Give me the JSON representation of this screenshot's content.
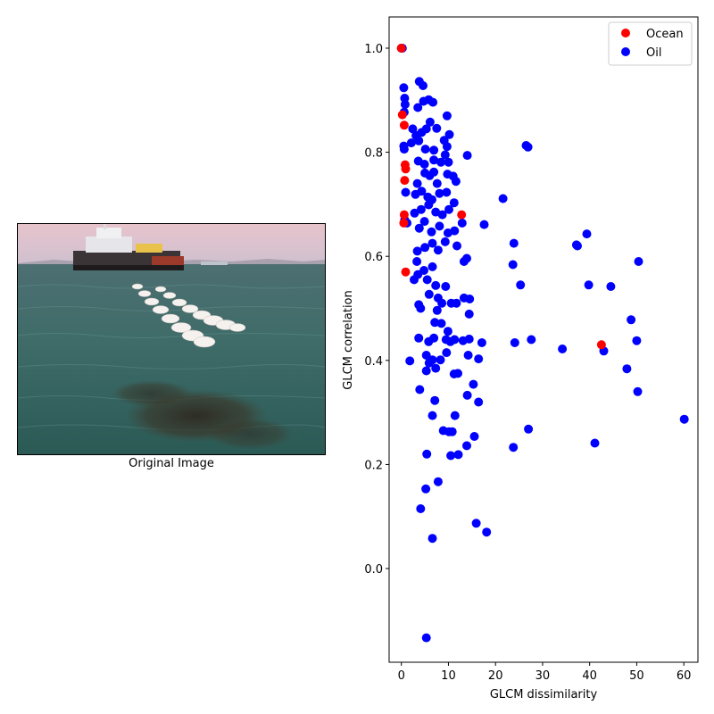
{
  "image_panel": {
    "caption": "Original Image",
    "depicts": "Tugboat towing a white boom of oil-absorbent material across greenish sea water, with dark oil slick in foreground"
  },
  "chart_data": {
    "type": "scatter",
    "xlabel": "GLCM dissimilarity",
    "ylabel": "GLCM correlation",
    "xlim": [
      -2.6,
      63.0
    ],
    "ylim": [
      -0.18,
      1.06
    ],
    "xticks": [
      0,
      10,
      20,
      30,
      40,
      50,
      60
    ],
    "yticks": [
      0.0,
      0.2,
      0.4,
      0.6,
      0.8,
      1.0
    ],
    "xtick_labels": [
      "0",
      "10",
      "20",
      "30",
      "40",
      "50",
      "60"
    ],
    "ytick_labels": [
      "0.0",
      "0.2",
      "0.4",
      "0.6",
      "0.8",
      "1.0"
    ],
    "legend": {
      "position": "upper right",
      "entries": [
        "Ocean",
        "Oil"
      ]
    },
    "series": [
      {
        "name": "Ocean",
        "color": "#ff0000",
        "points": [
          [
            0.0,
            1.0
          ],
          [
            0.2,
            0.872
          ],
          [
            0.6,
            0.852
          ],
          [
            0.8,
            0.776
          ],
          [
            0.9,
            0.768
          ],
          [
            0.7,
            0.746
          ],
          [
            0.6,
            0.68
          ],
          [
            0.5,
            0.664
          ],
          [
            0.9,
            0.57
          ],
          [
            12.8,
            0.68
          ],
          [
            42.5,
            0.43
          ]
        ]
      },
      {
        "name": "Oil",
        "color": "#0000ff",
        "points": [
          [
            0.0,
            1.0
          ],
          [
            0.2,
            1.0
          ],
          [
            0.5,
            0.924
          ],
          [
            0.7,
            0.904
          ],
          [
            0.8,
            0.892
          ],
          [
            0.6,
            0.877
          ],
          [
            0.5,
            0.812
          ],
          [
            0.6,
            0.806
          ],
          [
            0.7,
            0.67
          ],
          [
            0.9,
            0.723
          ],
          [
            1.2,
            0.664
          ],
          [
            3.8,
            0.936
          ],
          [
            4.6,
            0.928
          ],
          [
            3.5,
            0.886
          ],
          [
            4.7,
            0.898
          ],
          [
            5.8,
            0.901
          ],
          [
            6.7,
            0.896
          ],
          [
            9.7,
            0.87
          ],
          [
            2.4,
            0.845
          ],
          [
            3.1,
            0.832
          ],
          [
            4.3,
            0.838
          ],
          [
            5.3,
            0.845
          ],
          [
            6.1,
            0.858
          ],
          [
            7.5,
            0.846
          ],
          [
            9.1,
            0.823
          ],
          [
            10.2,
            0.834
          ],
          [
            2.1,
            0.818
          ],
          [
            3.7,
            0.822
          ],
          [
            5.1,
            0.806
          ],
          [
            6.9,
            0.804
          ],
          [
            9.7,
            0.811
          ],
          [
            3.6,
            0.783
          ],
          [
            4.9,
            0.777
          ],
          [
            6.9,
            0.785
          ],
          [
            8.4,
            0.781
          ],
          [
            9.3,
            0.795
          ],
          [
            10.0,
            0.781
          ],
          [
            14.0,
            0.794
          ],
          [
            26.5,
            0.813
          ],
          [
            26.9,
            0.81
          ],
          [
            3.4,
            0.74
          ],
          [
            5.0,
            0.76
          ],
          [
            6.0,
            0.755
          ],
          [
            6.9,
            0.762
          ],
          [
            7.6,
            0.74
          ],
          [
            9.8,
            0.758
          ],
          [
            11.0,
            0.754
          ],
          [
            11.6,
            0.744
          ],
          [
            3.0,
            0.719
          ],
          [
            4.3,
            0.725
          ],
          [
            5.6,
            0.714
          ],
          [
            6.5,
            0.709
          ],
          [
            8.1,
            0.721
          ],
          [
            9.6,
            0.723
          ],
          [
            11.2,
            0.703
          ],
          [
            21.6,
            0.711
          ],
          [
            2.8,
            0.683
          ],
          [
            4.2,
            0.69
          ],
          [
            5.8,
            0.699
          ],
          [
            7.3,
            0.685
          ],
          [
            8.7,
            0.68
          ],
          [
            10.1,
            0.69
          ],
          [
            12.9,
            0.664
          ],
          [
            17.6,
            0.661
          ],
          [
            3.8,
            0.654
          ],
          [
            4.9,
            0.667
          ],
          [
            6.4,
            0.647
          ],
          [
            8.1,
            0.658
          ],
          [
            9.9,
            0.645
          ],
          [
            11.3,
            0.649
          ],
          [
            3.4,
            0.61
          ],
          [
            5.0,
            0.617
          ],
          [
            6.6,
            0.625
          ],
          [
            7.8,
            0.612
          ],
          [
            9.3,
            0.628
          ],
          [
            11.8,
            0.62
          ],
          [
            3.3,
            0.59
          ],
          [
            4.8,
            0.573
          ],
          [
            6.6,
            0.58
          ],
          [
            13.3,
            0.59
          ],
          [
            13.9,
            0.596
          ],
          [
            23.7,
            0.584
          ],
          [
            23.9,
            0.625
          ],
          [
            37.2,
            0.622
          ],
          [
            37.4,
            0.62
          ],
          [
            39.4,
            0.643
          ],
          [
            50.4,
            0.59
          ],
          [
            2.7,
            0.555
          ],
          [
            3.5,
            0.565
          ],
          [
            5.5,
            0.555
          ],
          [
            7.3,
            0.544
          ],
          [
            9.4,
            0.542
          ],
          [
            25.3,
            0.545
          ],
          [
            39.8,
            0.545
          ],
          [
            44.5,
            0.542
          ],
          [
            3.7,
            0.507
          ],
          [
            4.1,
            0.5
          ],
          [
            5.9,
            0.527
          ],
          [
            7.8,
            0.52
          ],
          [
            8.6,
            0.51
          ],
          [
            10.6,
            0.51
          ],
          [
            11.7,
            0.51
          ],
          [
            13.3,
            0.52
          ],
          [
            14.5,
            0.518
          ],
          [
            14.4,
            0.489
          ],
          [
            7.6,
            0.496
          ],
          [
            7.1,
            0.473
          ],
          [
            8.5,
            0.471
          ],
          [
            9.9,
            0.456
          ],
          [
            10.4,
            0.436
          ],
          [
            3.7,
            0.443
          ],
          [
            5.8,
            0.436
          ],
          [
            6.9,
            0.443
          ],
          [
            9.5,
            0.44
          ],
          [
            11.3,
            0.44
          ],
          [
            13.1,
            0.438
          ],
          [
            14.4,
            0.441
          ],
          [
            17.1,
            0.434
          ],
          [
            24.1,
            0.434
          ],
          [
            27.6,
            0.44
          ],
          [
            34.2,
            0.422
          ],
          [
            43.0,
            0.418
          ],
          [
            48.8,
            0.478
          ],
          [
            50.0,
            0.438
          ],
          [
            1.8,
            0.399
          ],
          [
            5.3,
            0.41
          ],
          [
            5.9,
            0.395
          ],
          [
            6.6,
            0.401
          ],
          [
            8.3,
            0.401
          ],
          [
            9.6,
            0.415
          ],
          [
            14.2,
            0.41
          ],
          [
            16.4,
            0.403
          ],
          [
            5.3,
            0.38
          ],
          [
            7.3,
            0.385
          ],
          [
            11.2,
            0.374
          ],
          [
            12.0,
            0.375
          ],
          [
            15.3,
            0.354
          ],
          [
            47.9,
            0.384
          ],
          [
            3.9,
            0.344
          ],
          [
            14.0,
            0.333
          ],
          [
            7.1,
            0.323
          ],
          [
            16.4,
            0.32
          ],
          [
            50.2,
            0.34
          ],
          [
            6.6,
            0.294
          ],
          [
            11.4,
            0.294
          ],
          [
            60.1,
            0.287
          ],
          [
            8.9,
            0.265
          ],
          [
            10.1,
            0.263
          ],
          [
            10.8,
            0.263
          ],
          [
            27.0,
            0.268
          ],
          [
            15.5,
            0.254
          ],
          [
            13.9,
            0.236
          ],
          [
            23.8,
            0.233
          ],
          [
            41.1,
            0.241
          ],
          [
            5.4,
            0.22
          ],
          [
            10.5,
            0.217
          ],
          [
            12.1,
            0.219
          ],
          [
            7.8,
            0.167
          ],
          [
            5.2,
            0.153
          ],
          [
            4.1,
            0.115
          ],
          [
            15.9,
            0.087
          ],
          [
            18.1,
            0.07
          ],
          [
            6.6,
            0.058
          ],
          [
            5.3,
            -0.133
          ]
        ]
      }
    ]
  }
}
